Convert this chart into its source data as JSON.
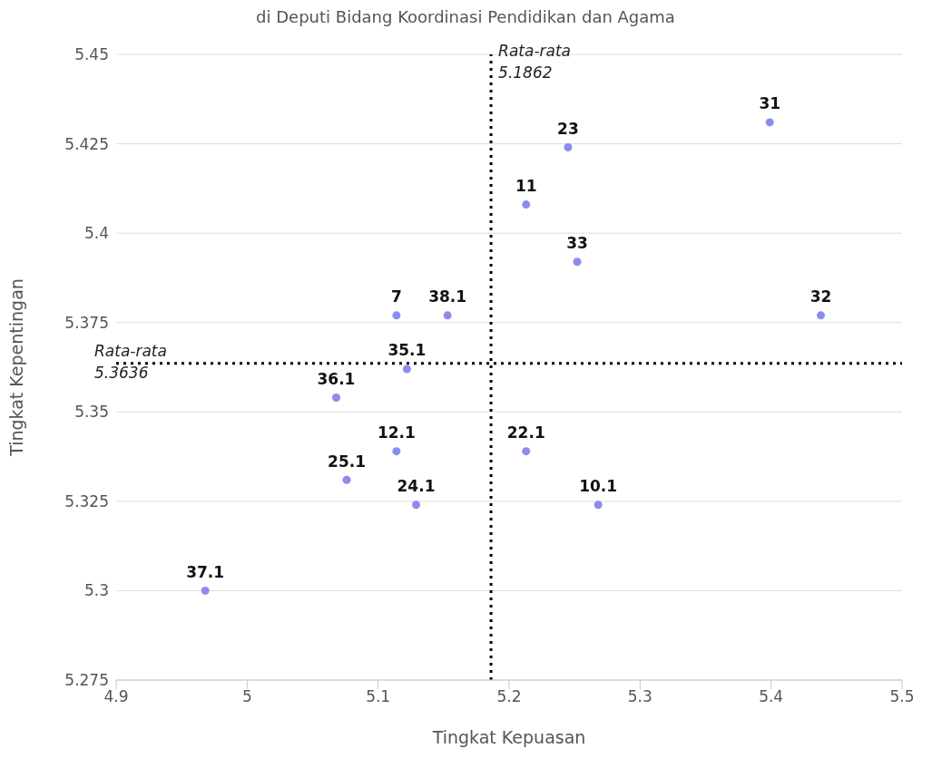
{
  "chart_data": {
    "type": "scatter",
    "title": "di Deputi Bidang Koordinasi Pendidikan dan Agama",
    "xlabel": "Tingkat Kepuasan",
    "ylabel": "Tingkat Kepentingan",
    "x": [
      5.399,
      5.245,
      5.213,
      5.252,
      5.438,
      5.114,
      5.153,
      5.122,
      5.068,
      5.114,
      5.213,
      5.076,
      5.129,
      5.268,
      4.968
    ],
    "series": [
      {
        "color": "#8c8cf0",
        "values": [
          5.431,
          5.424,
          5.408,
          5.392,
          5.377,
          5.377,
          5.377,
          5.362,
          5.354,
          5.339,
          5.339,
          5.331,
          5.324,
          5.324,
          5.3
        ]
      }
    ],
    "value_labels": [
      "31",
      "23",
      "11",
      "33",
      "32",
      "7",
      "38.1",
      "35.1",
      "36.1",
      "12.1",
      "22.1",
      "25.1",
      "24.1",
      "10.1",
      "37.1"
    ],
    "xlim": [
      4.9,
      5.5
    ],
    "xticks": [
      4.9,
      5,
      5.1,
      5.2,
      5.3,
      5.4,
      5.5
    ],
    "ylim": [
      5.275,
      5.45
    ],
    "yticks": [
      5.275,
      5.3,
      5.325,
      5.35,
      5.375,
      5.4,
      5.425,
      5.45
    ],
    "ref_lines": [
      {
        "axis": "x",
        "value": 5.1862,
        "label": "Rata-rata\n5.1862",
        "line_style": "dotted",
        "color": "#000000"
      },
      {
        "axis": "y",
        "value": 5.3636,
        "label": "Rata-rata\n5.3636",
        "line_style": "dotted",
        "color": "#000000"
      }
    ],
    "grid": "y",
    "marker": "circle"
  }
}
